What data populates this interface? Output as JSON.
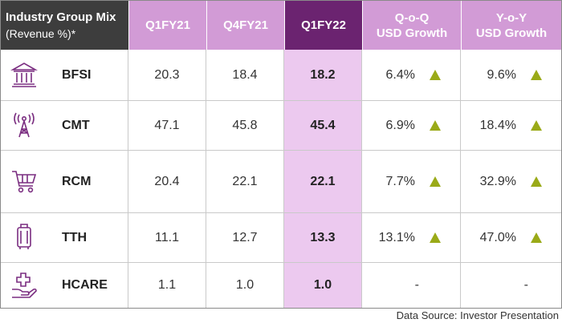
{
  "header": {
    "title_line1": "Industry Group Mix",
    "title_line2": "(Revenue %)*",
    "columns": [
      {
        "line1": "Q1FY21",
        "line2": ""
      },
      {
        "line1": "Q4FY21",
        "line2": ""
      },
      {
        "line1": "Q1FY22",
        "line2": ""
      },
      {
        "line1": "Q-o-Q",
        "line2": "USD Growth"
      },
      {
        "line1": "Y-o-Y",
        "line2": "USD Growth"
      }
    ]
  },
  "rows": [
    {
      "segment": "BFSI",
      "icon": "bank-icon",
      "q1fy21": "20.3",
      "q4fy21": "18.4",
      "q1fy22": "18.2",
      "qoq": "6.4%",
      "yoy": "9.6%",
      "qoq_up": true,
      "yoy_up": true
    },
    {
      "segment": "CMT",
      "icon": "antenna-tower-icon",
      "q1fy21": "47.1",
      "q4fy21": "45.8",
      "q1fy22": "45.4",
      "qoq": "6.9%",
      "yoy": "18.4%",
      "qoq_up": true,
      "yoy_up": true
    },
    {
      "segment": "RCM",
      "icon": "shopping-cart-icon",
      "q1fy21": "20.4",
      "q4fy21": "22.1",
      "q1fy22": "22.1",
      "qoq": "7.7%",
      "yoy": "32.9%",
      "qoq_up": true,
      "yoy_up": true
    },
    {
      "segment": "TTH",
      "icon": "luggage-icon",
      "q1fy21": "11.1",
      "q4fy21": "12.7",
      "q1fy22": "13.3",
      "qoq": "13.1%",
      "yoy": "47.0%",
      "qoq_up": true,
      "yoy_up": true
    },
    {
      "segment": "HCARE",
      "icon": "healthcare-hand-cross-icon",
      "q1fy21": "1.1",
      "q4fy21": "1.0",
      "q1fy22": "1.0",
      "qoq": "-",
      "yoy": "-",
      "qoq_up": false,
      "yoy_up": false
    }
  ],
  "footer": {
    "source": "Data Source: Investor Presentation"
  },
  "colors": {
    "header_dark": "#3d3d3d",
    "header_purple": "#d29bd6",
    "highlight_purple": "#6b2370",
    "highlight_cell": "#ecc9ef",
    "up_arrow": "#9aaa18",
    "icon_purple": "#7a2d80"
  }
}
